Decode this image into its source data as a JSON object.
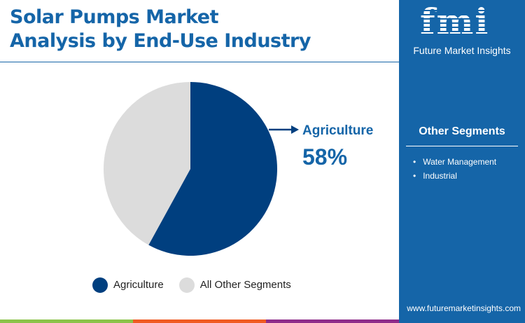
{
  "title": [
    "Solar Pumps Market",
    "Analysis by End-Use Industry"
  ],
  "brand": {
    "logo": "fmi",
    "name": "Future Market Insights",
    "website": "www.futuremarketinsights.com"
  },
  "side": {
    "heading": "Other Segments",
    "items": [
      "Water Management",
      "Industrial"
    ]
  },
  "colors": {
    "primary": "#003f7f",
    "other": "#dcdcdc",
    "accent": "#1565a8"
  },
  "chart_data": {
    "type": "pie",
    "categories": [
      "Agriculture",
      "All Other Segments"
    ],
    "values": [
      58,
      42
    ],
    "callout": {
      "label": "Agriculture",
      "value": "58%"
    },
    "legend": "bottom"
  }
}
